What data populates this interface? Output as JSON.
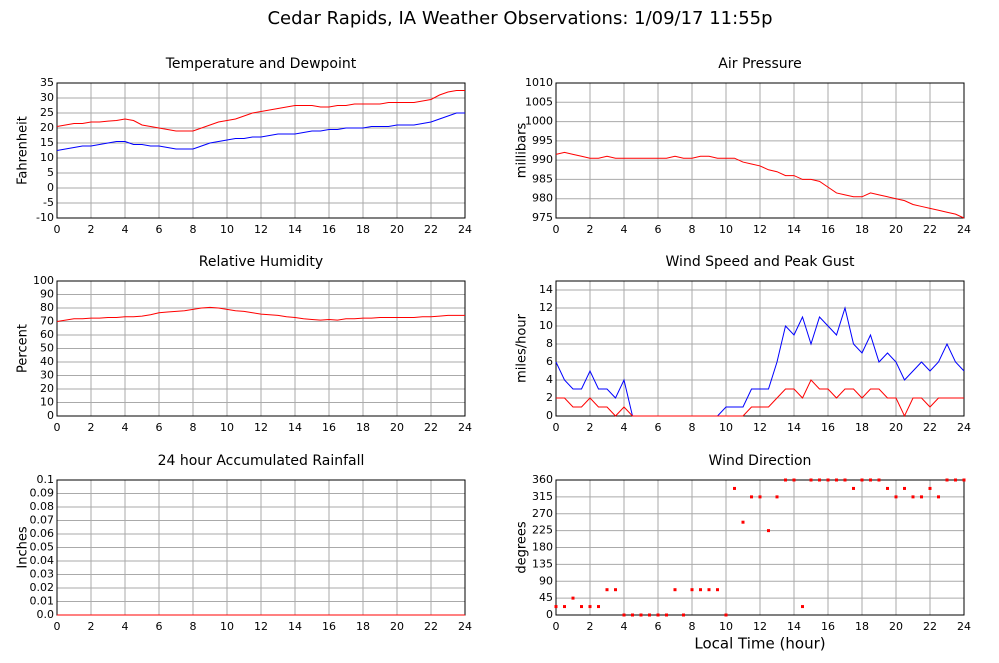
{
  "title": "Cedar Rapids, IA Weather Observations: 1/09/17 11:55p",
  "chart_data": [
    {
      "type": "line",
      "title": "Temperature and Dewpoint",
      "ylabel": "Fahrenheit",
      "x": [
        0,
        0.5,
        1,
        1.5,
        2,
        2.5,
        3,
        3.5,
        4,
        4.5,
        5,
        5.5,
        6,
        6.5,
        7,
        7.5,
        8,
        8.5,
        9,
        9.5,
        10,
        10.5,
        11,
        11.5,
        12,
        12.5,
        13,
        13.5,
        14,
        14.5,
        15,
        15.5,
        16,
        16.5,
        17,
        17.5,
        18,
        18.5,
        19,
        19.5,
        20,
        20.5,
        21,
        21.5,
        22,
        22.5,
        23,
        23.5,
        24
      ],
      "series": [
        {
          "color": "#ff0000",
          "values": [
            20.5,
            21,
            21.5,
            21.5,
            22,
            22,
            22.3,
            22.5,
            23,
            22.5,
            21,
            20.5,
            20,
            19.5,
            19,
            19,
            19,
            20,
            21,
            22,
            22.5,
            23,
            24,
            25,
            25.5,
            26,
            26.5,
            27,
            27.5,
            27.5,
            27.5,
            27,
            27,
            27.5,
            27.5,
            28,
            28,
            28,
            28,
            28.5,
            28.5,
            28.5,
            28.5,
            29,
            29.5,
            31,
            32,
            32.5,
            32.5
          ]
        },
        {
          "color": "#0000ff",
          "values": [
            12.5,
            13,
            13.5,
            14,
            14,
            14.5,
            15,
            15.5,
            15.5,
            14.5,
            14.5,
            14,
            14,
            13.5,
            13,
            13,
            13,
            14,
            15,
            15.5,
            16,
            16.5,
            16.5,
            17,
            17,
            17.5,
            18,
            18,
            18,
            18.5,
            19,
            19,
            19.5,
            19.5,
            20,
            20,
            20,
            20.5,
            20.5,
            20.5,
            21,
            21,
            21,
            21.5,
            22,
            23,
            24,
            25,
            25
          ]
        }
      ],
      "xlim": [
        0,
        24
      ],
      "xticks": [
        0,
        2,
        4,
        6,
        8,
        10,
        12,
        14,
        16,
        18,
        20,
        22,
        24
      ],
      "ylim": [
        -10,
        35
      ],
      "yticks": [
        -10,
        -5,
        0,
        5,
        10,
        15,
        20,
        25,
        30,
        35
      ],
      "grid": true
    },
    {
      "type": "line",
      "title": "Air Pressure",
      "ylabel": "millibars",
      "x": [
        0,
        0.5,
        1,
        1.5,
        2,
        2.5,
        3,
        3.5,
        4,
        4.5,
        5,
        5.5,
        6,
        6.5,
        7,
        7.5,
        8,
        8.5,
        9,
        9.5,
        10,
        10.5,
        11,
        11.5,
        12,
        12.5,
        13,
        13.5,
        14,
        14.5,
        15,
        15.5,
        16,
        16.5,
        17,
        17.5,
        18,
        18.5,
        19,
        19.5,
        20,
        20.5,
        21,
        21.5,
        22,
        22.5,
        23,
        23.5,
        24
      ],
      "series": [
        {
          "color": "#ff0000",
          "values": [
            991.5,
            992,
            991.5,
            991,
            990.5,
            990.5,
            991,
            990.5,
            990.5,
            990.5,
            990.5,
            990.5,
            990.5,
            990.5,
            991,
            990.5,
            990.5,
            991,
            991,
            990.5,
            990.5,
            990.5,
            989.5,
            989,
            988.5,
            987.5,
            987,
            986,
            986,
            985,
            985,
            984.5,
            983,
            981.5,
            981,
            980.5,
            980.5,
            981.5,
            981,
            980.5,
            980,
            979.5,
            978.5,
            978,
            977.5,
            977,
            976.5,
            976,
            975
          ]
        }
      ],
      "xlim": [
        0,
        24
      ],
      "xticks": [
        0,
        2,
        4,
        6,
        8,
        10,
        12,
        14,
        16,
        18,
        20,
        22,
        24
      ],
      "ylim": [
        975,
        1010
      ],
      "yticks": [
        975,
        980,
        985,
        990,
        995,
        1000,
        1005,
        1010
      ],
      "grid": true
    },
    {
      "type": "line",
      "title": "Relative Humidity",
      "ylabel": "Percent",
      "x": [
        0,
        0.5,
        1,
        1.5,
        2,
        2.5,
        3,
        3.5,
        4,
        4.5,
        5,
        5.5,
        6,
        6.5,
        7,
        7.5,
        8,
        8.5,
        9,
        9.5,
        10,
        10.5,
        11,
        11.5,
        12,
        12.5,
        13,
        13.5,
        14,
        14.5,
        15,
        15.5,
        16,
        16.5,
        17,
        17.5,
        18,
        18.5,
        19,
        19.5,
        20,
        20.5,
        21,
        21.5,
        22,
        22.5,
        23,
        23.5,
        24
      ],
      "series": [
        {
          "color": "#ff0000",
          "values": [
            70,
            71,
            72,
            72,
            72.5,
            72.5,
            73,
            73,
            73.5,
            73.5,
            74,
            75,
            76.5,
            77,
            77.5,
            78,
            79,
            80,
            80.5,
            80,
            79,
            78,
            77.5,
            76.5,
            75.5,
            75,
            74.5,
            73.5,
            73,
            72,
            71.5,
            71,
            71.5,
            71,
            72,
            72,
            72.5,
            72.5,
            73,
            73,
            73,
            73,
            73,
            73.5,
            73.5,
            74,
            74.5,
            74.5,
            74.5
          ]
        }
      ],
      "xlim": [
        0,
        24
      ],
      "xticks": [
        0,
        2,
        4,
        6,
        8,
        10,
        12,
        14,
        16,
        18,
        20,
        22,
        24
      ],
      "ylim": [
        0,
        100
      ],
      "yticks": [
        0,
        10,
        20,
        30,
        40,
        50,
        60,
        70,
        80,
        90,
        100
      ],
      "grid": true
    },
    {
      "type": "line",
      "title": "Wind Speed and Peak Gust",
      "ylabel": "miles/hour",
      "x": [
        0,
        0.5,
        1,
        1.5,
        2,
        2.5,
        3,
        3.5,
        4,
        4.5,
        5,
        5.5,
        6,
        6.5,
        7,
        7.5,
        8,
        8.5,
        9,
        9.5,
        10,
        10.5,
        11,
        11.5,
        12,
        12.5,
        13,
        13.5,
        14,
        14.5,
        15,
        15.5,
        16,
        16.5,
        17,
        17.5,
        18,
        18.5,
        19,
        19.5,
        20,
        20.5,
        21,
        21.5,
        22,
        22.5,
        23,
        23.5,
        24
      ],
      "series": [
        {
          "color": "#0000ff",
          "values": [
            6,
            4,
            3,
            3,
            5,
            3,
            3,
            2,
            4,
            0,
            0,
            0,
            0,
            0,
            0,
            0,
            0,
            0,
            0,
            0,
            1,
            1,
            1,
            3,
            3,
            3,
            6,
            10,
            9,
            11,
            8,
            11,
            10,
            9,
            12,
            8,
            7,
            9,
            6,
            7,
            6,
            4,
            5,
            6,
            5,
            6,
            8,
            6,
            5
          ]
        },
        {
          "color": "#ff0000",
          "values": [
            2,
            2,
            1,
            1,
            2,
            1,
            1,
            0,
            1,
            0,
            0,
            0,
            0,
            0,
            0,
            0,
            0,
            0,
            0,
            0,
            0,
            0,
            0,
            1,
            1,
            1,
            2,
            3,
            3,
            2,
            4,
            3,
            3,
            2,
            3,
            3,
            2,
            3,
            3,
            2,
            2,
            0,
            2,
            2,
            1,
            2,
            2,
            2,
            2
          ]
        }
      ],
      "xlim": [
        0,
        24
      ],
      "xticks": [
        0,
        2,
        4,
        6,
        8,
        10,
        12,
        14,
        16,
        18,
        20,
        22,
        24
      ],
      "ylim": [
        0,
        15
      ],
      "yticks": [
        0,
        2,
        4,
        6,
        8,
        10,
        12,
        14
      ],
      "grid": true
    },
    {
      "type": "line",
      "title": "24 hour Accumulated Rainfall",
      "ylabel": "Inches",
      "x": [
        0,
        24
      ],
      "series": [
        {
          "color": "#ff0000",
          "values": [
            0,
            0
          ]
        }
      ],
      "xlim": [
        0,
        24
      ],
      "xticks": [
        0,
        2,
        4,
        6,
        8,
        10,
        12,
        14,
        16,
        18,
        20,
        22,
        24
      ],
      "ylim": [
        0,
        0.1
      ],
      "yticks": [
        {
          "value": 0,
          "label": "0.0"
        },
        0.01,
        0.02,
        0.03,
        0.04,
        0.05,
        0.06,
        0.07,
        0.08,
        0.09,
        0.1
      ],
      "grid": true
    },
    {
      "type": "scatter",
      "title": "Wind Direction",
      "ylabel": "degrees",
      "xlabel": "Local Time (hour)",
      "x": [
        0,
        0.5,
        1,
        1.5,
        2,
        2.5,
        3,
        3.5,
        4,
        4.5,
        5,
        5.5,
        6,
        6.5,
        7,
        7.5,
        8,
        8.5,
        9,
        9.5,
        10,
        10.5,
        11,
        11.5,
        12,
        12.5,
        13,
        13.5,
        14,
        14.5,
        15,
        15.5,
        16,
        16.5,
        17,
        17.5,
        18,
        18.5,
        19,
        19.5,
        20,
        20.5,
        21,
        21.5,
        22,
        22.5,
        23,
        23.5,
        24
      ],
      "series": [
        {
          "color": "#ff0000",
          "values": [
            22.5,
            22.5,
            45,
            22.5,
            22.5,
            22.5,
            67.5,
            67.5,
            0,
            0,
            0,
            0,
            0,
            0,
            67.5,
            0,
            67.5,
            67.5,
            67.5,
            67.5,
            0,
            337.5,
            247.5,
            315,
            315,
            225,
            315,
            360,
            360,
            22.5,
            360,
            360,
            360,
            360,
            360,
            337.5,
            360,
            360,
            360,
            337.5,
            315,
            337.5,
            315,
            315,
            337.5,
            315,
            360,
            360,
            360
          ]
        }
      ],
      "xlim": [
        0,
        24
      ],
      "xticks": [
        0,
        2,
        4,
        6,
        8,
        10,
        12,
        14,
        16,
        18,
        20,
        22,
        24
      ],
      "ylim": [
        0,
        360
      ],
      "yticks": [
        0,
        45,
        90,
        135,
        180,
        225,
        270,
        315,
        360
      ],
      "grid": true
    }
  ]
}
